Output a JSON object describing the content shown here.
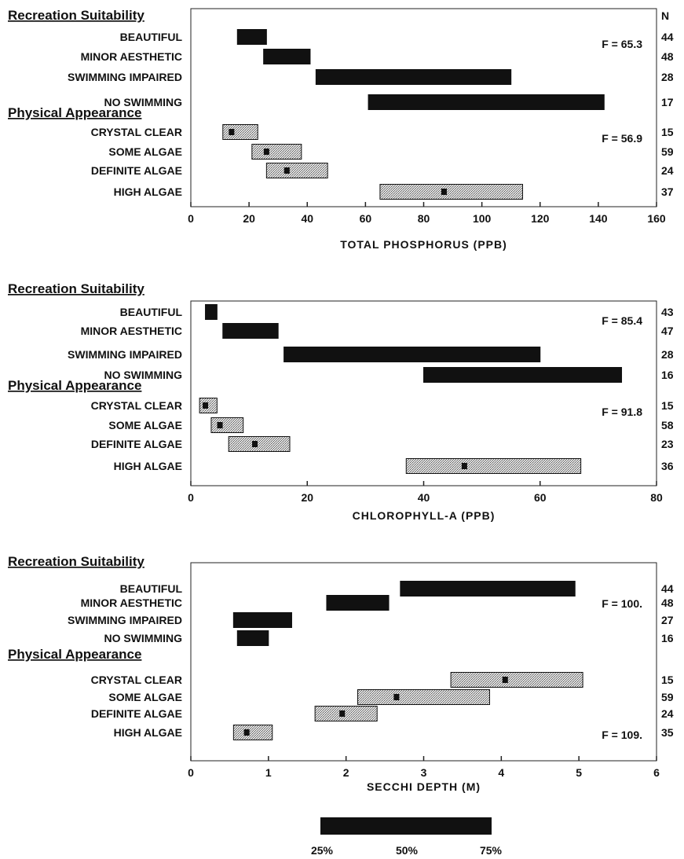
{
  "chart_data": [
    {
      "type": "bar",
      "xlabel": "TOTAL PHOSPHORUS (PPB)",
      "xlim": [
        0,
        160
      ],
      "xticks": [
        0,
        20,
        40,
        60,
        80,
        100,
        120,
        140,
        160
      ],
      "n_header": "N",
      "groups": [
        {
          "title": "Recreation Suitability",
          "f_label": "F = 65.3",
          "categories": [
            "BEAUTIFUL",
            "MINOR AESTHETIC",
            "SWIMMING IMPAIRED",
            "NO SWIMMING"
          ],
          "q1": [
            16,
            25,
            43,
            61
          ],
          "q3": [
            26,
            41,
            110,
            142
          ],
          "median": [
            null,
            null,
            null,
            null
          ],
          "n": [
            "44",
            "48",
            "28",
            "17"
          ],
          "color": "#111111"
        },
        {
          "title": "Physical Appearance",
          "f_label": "F = 56.9",
          "categories": [
            "CRYSTAL CLEAR",
            "SOME ALGAE",
            "DEFINITE ALGAE",
            "HIGH ALGAE"
          ],
          "q1": [
            11,
            21,
            26,
            65
          ],
          "q3": [
            23,
            38,
            47,
            114
          ],
          "median": [
            14,
            26,
            33,
            87
          ],
          "n": [
            "15",
            "59",
            "24",
            "37"
          ],
          "color": "#c8c8c8"
        }
      ]
    },
    {
      "type": "bar",
      "xlabel": "CHLOROPHYLL-A (PPB)",
      "xlim": [
        0,
        80
      ],
      "xticks": [
        0,
        20,
        40,
        60,
        80
      ],
      "n_header": "",
      "groups": [
        {
          "title": "Recreation Suitability",
          "f_label": "F = 85.4",
          "categories": [
            "BEAUTIFUL",
            "MINOR AESTHETIC",
            "SWIMMING IMPAIRED",
            "NO SWIMMING"
          ],
          "q1": [
            2.5,
            5.5,
            16,
            40
          ],
          "q3": [
            4.5,
            15,
            60,
            74
          ],
          "median": [
            null,
            null,
            null,
            null
          ],
          "n": [
            "43",
            "47",
            "28",
            "16"
          ],
          "color": "#111111"
        },
        {
          "title": "Physical Appearance",
          "f_label": "F = 91.8",
          "categories": [
            "CRYSTAL CLEAR",
            "SOME ALGAE",
            "DEFINITE ALGAE",
            "HIGH ALGAE"
          ],
          "q1": [
            1.5,
            3.5,
            6.5,
            37
          ],
          "q3": [
            4.5,
            9,
            17,
            67
          ],
          "median": [
            2.5,
            5,
            11,
            47
          ],
          "n": [
            "15",
            "58",
            "23",
            "36"
          ],
          "color": "#c8c8c8"
        }
      ]
    },
    {
      "type": "bar",
      "xlabel": "SECCHI DEPTH (M)",
      "xlim": [
        0,
        6
      ],
      "xticks": [
        0,
        1,
        2,
        3,
        4,
        5,
        6
      ],
      "n_header": "",
      "groups": [
        {
          "title": "Recreation Suitability",
          "f_label": "F = 100.",
          "categories": [
            "BEAUTIFUL",
            "MINOR AESTHETIC",
            "SWIMMING IMPAIRED",
            "NO SWIMMING"
          ],
          "q1": [
            2.7,
            1.75,
            0.55,
            0.6
          ],
          "q3": [
            4.95,
            2.55,
            1.3,
            1.0
          ],
          "median": [
            null,
            null,
            null,
            null
          ],
          "n": [
            "44",
            "48",
            "27",
            "16"
          ],
          "color": "#111111"
        },
        {
          "title": "Physical Appearance",
          "f_label": "F = 109.",
          "categories": [
            "CRYSTAL CLEAR",
            "SOME ALGAE",
            "DEFINITE ALGAE",
            "HIGH ALGAE"
          ],
          "q1": [
            3.35,
            2.15,
            1.6,
            0.55
          ],
          "q3": [
            5.05,
            3.85,
            2.4,
            1.05
          ],
          "median": [
            4.05,
            2.65,
            1.95,
            0.72
          ],
          "n": [
            "15",
            "59",
            "24",
            "35"
          ],
          "color": "#c8c8c8"
        }
      ]
    }
  ],
  "legend": {
    "labels": [
      "25%",
      "50%",
      "75%"
    ]
  }
}
